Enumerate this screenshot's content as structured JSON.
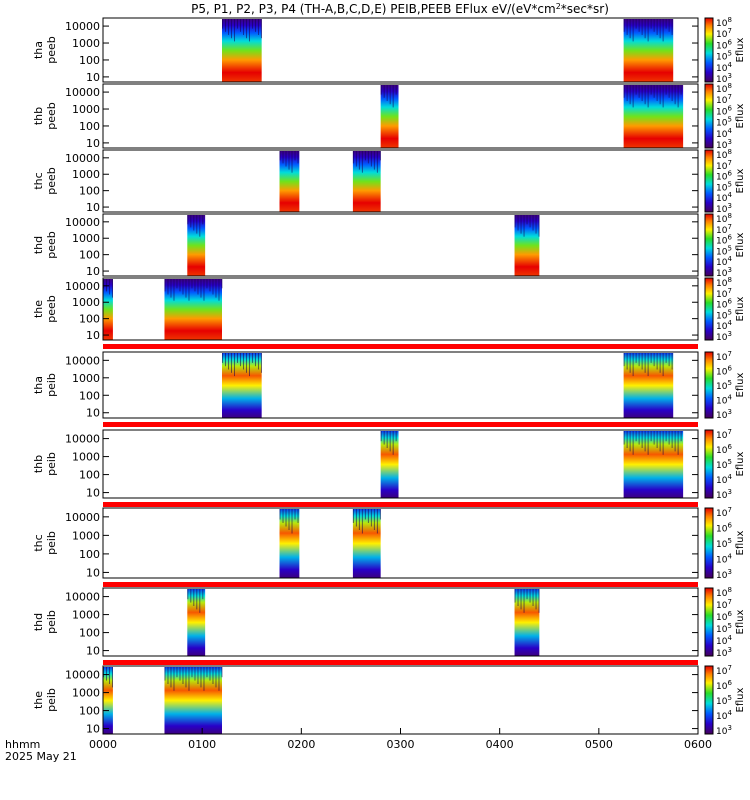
{
  "title_parts": {
    "main": "P5, P1, P2, P3, P4 (TH-A,B,C,D,E) PEIB,PEEB EFlux eV/(eV*cm",
    "sup": "2",
    "tail": "*sec*sr)"
  },
  "footer": {
    "hhmm_label": "hhmm",
    "date_label": "2025 May 21"
  },
  "colorbar_label": "Eflux",
  "chart_data": {
    "type": "heatmap",
    "title": "P5, P1, P2, P3, P4 (TH-A,B,C,D,E) PEIB,PEEB EFlux eV/(eV*cm^2*sec*sr)",
    "x": {
      "label": "hhmm",
      "range_hours": [
        0,
        6
      ],
      "tick_labels": [
        "0000",
        "0100",
        "0200",
        "0300",
        "0400",
        "0500",
        "0600"
      ]
    },
    "y_scale": "log",
    "y_range_eV": [
      5,
      30000
    ],
    "y_tick_labels": [
      "10",
      "100",
      "1000",
      "10000"
    ],
    "panels": [
      {
        "probe": "tha",
        "product": "peeb",
        "cbar_ticks": [
          "10^3",
          "10^4",
          "10^5",
          "10^6",
          "10^7",
          "10^8"
        ],
        "bursts_hours": [
          [
            1.2,
            1.6
          ],
          [
            5.25,
            5.75
          ]
        ],
        "status_bar": false
      },
      {
        "probe": "thb",
        "product": "peeb",
        "cbar_ticks": [
          "10^3",
          "10^4",
          "10^5",
          "10^6",
          "10^7",
          "10^8"
        ],
        "bursts_hours": [
          [
            2.8,
            2.98
          ],
          [
            5.25,
            5.85
          ]
        ],
        "status_bar": false
      },
      {
        "probe": "thc",
        "product": "peeb",
        "cbar_ticks": [
          "10^3",
          "10^4",
          "10^5",
          "10^6",
          "10^7",
          "10^8"
        ],
        "bursts_hours": [
          [
            1.78,
            1.98
          ],
          [
            2.52,
            2.8
          ]
        ],
        "status_bar": false
      },
      {
        "probe": "thd",
        "product": "peeb",
        "cbar_ticks": [
          "10^3",
          "10^4",
          "10^5",
          "10^6",
          "10^7",
          "10^8"
        ],
        "bursts_hours": [
          [
            0.85,
            1.03
          ],
          [
            4.15,
            4.4
          ]
        ],
        "status_bar": false
      },
      {
        "probe": "the",
        "product": "peeb",
        "cbar_ticks": [
          "10^3",
          "10^4",
          "10^5",
          "10^6",
          "10^7",
          "10^8"
        ],
        "bursts_hours": [
          [
            0.0,
            0.1
          ],
          [
            0.62,
            1.2
          ]
        ],
        "status_bar": true
      },
      {
        "probe": "tha",
        "product": "peib",
        "cbar_ticks": [
          "10^3",
          "10^4",
          "10^5",
          "10^6",
          "10^7"
        ],
        "bursts_hours": [
          [
            1.2,
            1.6
          ],
          [
            5.25,
            5.75
          ]
        ],
        "status_bar": true
      },
      {
        "probe": "thb",
        "product": "peib",
        "cbar_ticks": [
          "10^3",
          "10^4",
          "10^5",
          "10^6",
          "10^7"
        ],
        "bursts_hours": [
          [
            2.8,
            2.98
          ],
          [
            5.25,
            5.85
          ]
        ],
        "status_bar": true
      },
      {
        "probe": "thc",
        "product": "peib",
        "cbar_ticks": [
          "10^3",
          "10^4",
          "10^5",
          "10^6",
          "10^7"
        ],
        "bursts_hours": [
          [
            1.78,
            1.98
          ],
          [
            2.52,
            2.8
          ]
        ],
        "status_bar": true
      },
      {
        "probe": "thd",
        "product": "peib",
        "cbar_ticks": [
          "10^3",
          "10^4",
          "10^5",
          "10^6",
          "10^7",
          "10^8"
        ],
        "bursts_hours": [
          [
            0.85,
            1.03
          ],
          [
            4.15,
            4.4
          ]
        ],
        "status_bar": true
      },
      {
        "probe": "the",
        "product": "peib",
        "cbar_ticks": [
          "10^3",
          "10^4",
          "10^5",
          "10^6",
          "10^7"
        ],
        "bursts_hours": [
          [
            0.0,
            0.1
          ],
          [
            0.62,
            1.2
          ]
        ],
        "status_bar": false
      }
    ]
  }
}
